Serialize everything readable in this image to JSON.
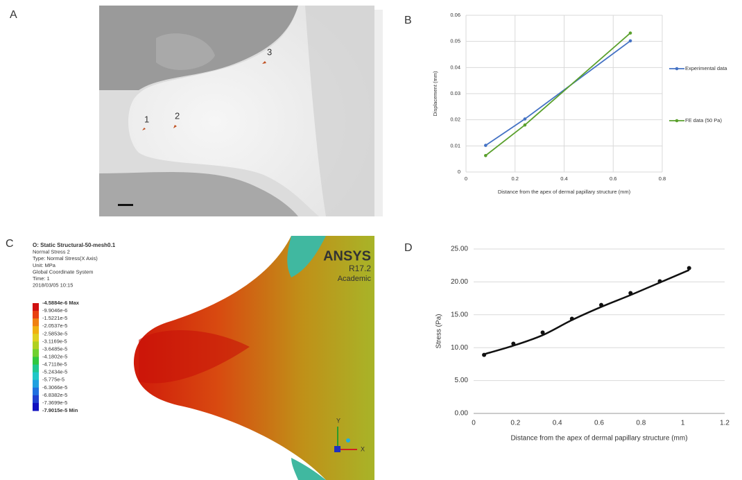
{
  "panel_labels": [
    "A",
    "B",
    "C",
    "D"
  ],
  "image_a": {
    "markers": [
      "1",
      "2",
      "3"
    ]
  },
  "ansys": {
    "header": [
      "O: Static Structural-50-mesh0.1",
      "Normal Stress 2",
      "Type: Normal Stress(X Axis)",
      "Unit: MPa",
      "Global Coordinate System",
      "Time: 1",
      "2018/03/05 10:15"
    ],
    "legend": [
      "-4.5884e-6 Max",
      "-9.9046e-6",
      "-1.5221e-5",
      "-2.0537e-5",
      "-2.5853e-5",
      "-3.1169e-5",
      "-3.6485e-5",
      "-4.1802e-5",
      "-4.7118e-5",
      "-5.2434e-5",
      "-5.775e-5",
      "-6.3066e-5",
      "-6.8382e-5",
      "-7.3699e-5",
      "-7.9015e-5 Min"
    ],
    "brand": "ANSYS",
    "version": "R17.2",
    "edition": "Academic",
    "axes": [
      "Y",
      "X"
    ]
  },
  "chart_data": [
    {
      "type": "line",
      "x_label": "Distance from the apex of dermal papillary structure (mm)",
      "y_label": "Displacement (mm)",
      "x": [
        0.08,
        0.24,
        0.67
      ],
      "series": [
        {
          "name": "Experimental data",
          "color": "#4472c4",
          "values": [
            0.0102,
            0.0203,
            0.0502
          ]
        },
        {
          "name": "FE data (50 Pa)",
          "color": "#5aa02c",
          "values": [
            0.0063,
            0.018,
            0.0532
          ]
        }
      ],
      "xlim": [
        0,
        0.8
      ],
      "xticks": [
        0,
        0.2,
        0.4,
        0.6,
        0.8
      ],
      "ylim": [
        0,
        0.06
      ],
      "yticks": [
        0,
        0.01,
        0.02,
        0.03,
        0.04,
        0.05,
        0.06
      ],
      "grid": "both",
      "legend": "right",
      "markers": true
    },
    {
      "type": "scatter",
      "x_label": "Distance from the apex of dermal papillary structure  (mm)",
      "y_label": "Stress (Pa)",
      "x": [
        0.05,
        0.19,
        0.33,
        0.47,
        0.61,
        0.75,
        0.89,
        1.03
      ],
      "series": [
        {
          "color": "#111111",
          "mode": "markers",
          "values": [
            8.9,
            10.6,
            12.3,
            14.4,
            16.5,
            18.3,
            20.1,
            22.1
          ]
        },
        {
          "color": "#111111",
          "mode": "smooth-line",
          "values": [
            9.0,
            10.3,
            11.9,
            14.2,
            16.2,
            18.0,
            19.9,
            21.8
          ]
        }
      ],
      "xlim": [
        0,
        1.2
      ],
      "xticks": [
        0,
        0.2,
        0.4,
        0.6,
        0.8,
        1,
        1.2
      ],
      "ylim": [
        0,
        25
      ],
      "yticks": [
        {
          "value": 0,
          "label": "0.00"
        },
        {
          "value": 5,
          "label": "5.00"
        },
        {
          "value": 10,
          "label": "10.00"
        },
        {
          "value": 15,
          "label": "15.00"
        },
        {
          "value": 20,
          "label": "20.00"
        },
        {
          "value": 25,
          "label": "25.00"
        }
      ],
      "grid": "y"
    }
  ]
}
